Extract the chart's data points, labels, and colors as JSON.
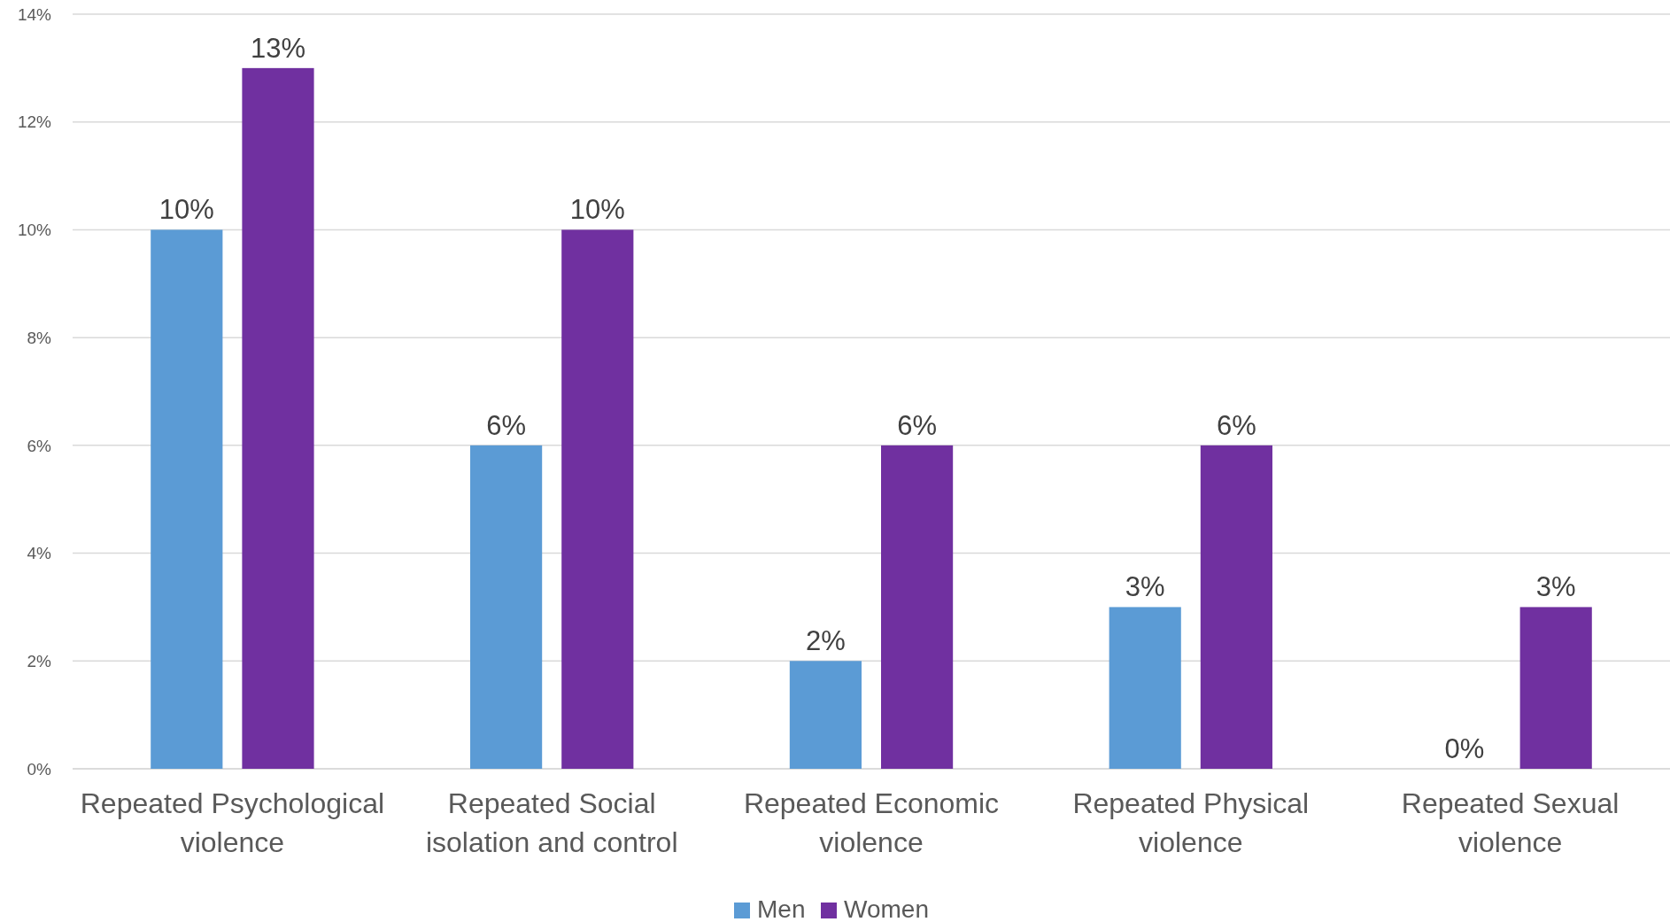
{
  "chart_data": {
    "type": "bar",
    "categories": [
      "Repeated Psychological violence",
      "Repeated Social isolation and control",
      "Repeated Economic violence",
      "Repeated Physical violence",
      "Repeated Sexual violence"
    ],
    "series": [
      {
        "name": "Men",
        "color": "#5b9bd5",
        "values": [
          10,
          6,
          2,
          3,
          0
        ]
      },
      {
        "name": "Women",
        "color": "#7030a0",
        "values": [
          13,
          10,
          6,
          6,
          3
        ]
      }
    ],
    "ylim": [
      0,
      14
    ],
    "yticks": [
      {
        "value": 0,
        "label": "0%"
      },
      {
        "value": 2,
        "label": "2%"
      },
      {
        "value": 4,
        "label": "4%"
      },
      {
        "value": 6,
        "label": "6%"
      },
      {
        "value": 8,
        "label": "8%"
      },
      {
        "value": 10,
        "label": "10%"
      },
      {
        "value": 12,
        "label": "12%"
      },
      {
        "value": 14,
        "label": "14%"
      }
    ],
    "value_labels": [
      [
        "10%",
        "6%",
        "2%",
        "3%",
        "0%"
      ],
      [
        "13%",
        "10%",
        "6%",
        "6%",
        "3%"
      ]
    ],
    "grid": "y",
    "legend": "bottom"
  }
}
